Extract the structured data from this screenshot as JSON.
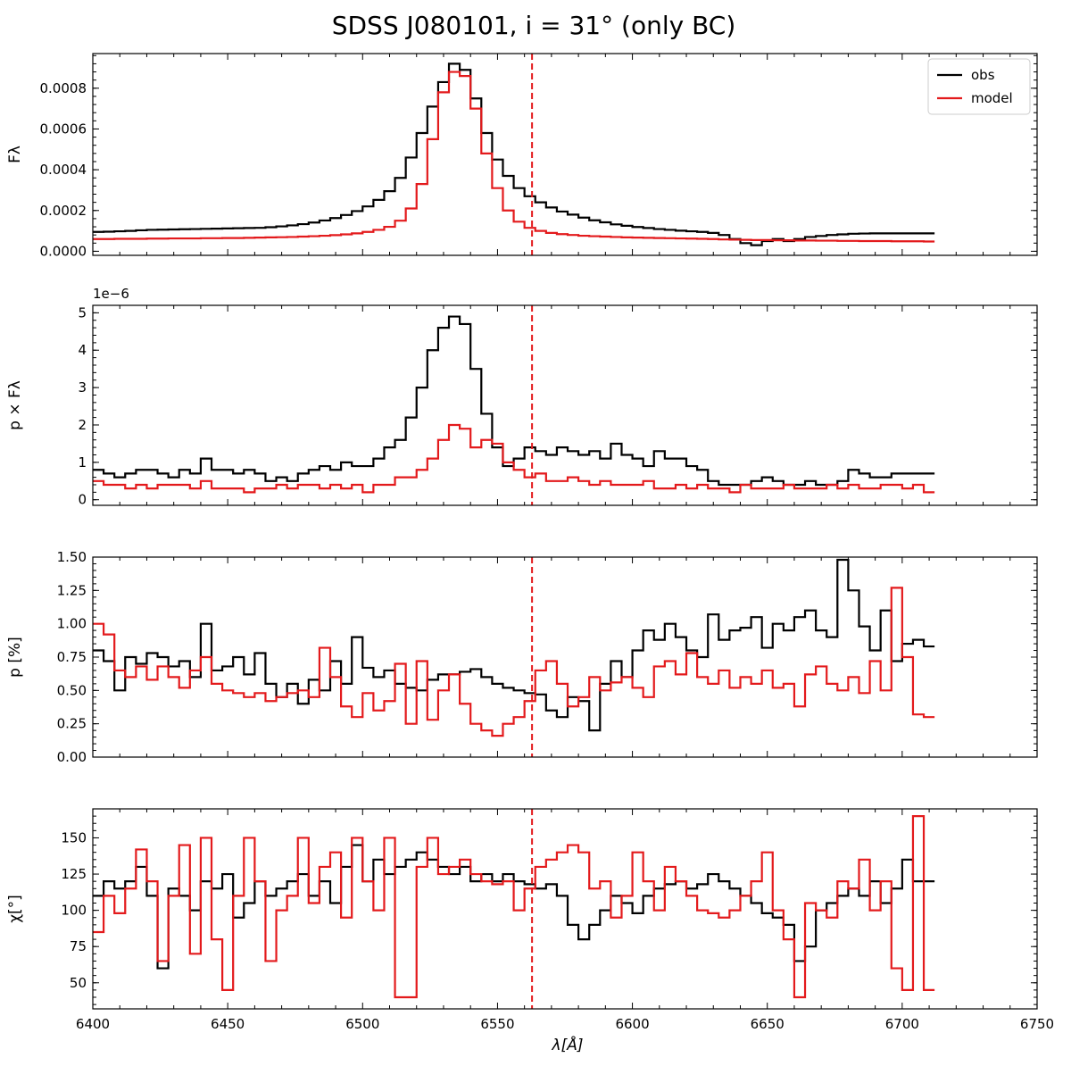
{
  "chart_data": {
    "title": "SDSS J080101, i = 31° (only BC)",
    "type": "line",
    "xlabel": "λ[Å]",
    "xlim": [
      6400,
      6750
    ],
    "xticks": [
      6400,
      6450,
      6500,
      6550,
      6600,
      6650,
      6700,
      6750
    ],
    "vline": {
      "x": 6562.8,
      "color": "#e31a1c",
      "style": "dashed"
    },
    "legend": {
      "placement": "top-right",
      "entries": [
        {
          "name": "obs",
          "color": "#000000"
        },
        {
          "name": "model",
          "color": "#e31a1c"
        }
      ]
    },
    "colors": {
      "obs": "#000000",
      "model": "#e31a1c"
    },
    "panels": [
      {
        "ylabel": "Fλ",
        "ylim": [
          -2e-05,
          0.00097
        ],
        "yticks": [
          0,
          0.0002,
          0.0004,
          0.0006,
          0.0008
        ],
        "ytick_labels": [
          "0.0000",
          "0.0002",
          "0.0004",
          "0.0006",
          "0.0008"
        ],
        "offset_text": "",
        "step": 4,
        "series": [
          {
            "name": "obs",
            "x0": 6400,
            "values": [
              9.5e-05,
              9.6e-05,
              9.8e-05,
              0.0001,
              0.000103,
              0.000105,
              0.000106,
              0.000107,
              0.000108,
              0.000109,
              0.00011,
              0.000111,
              0.000112,
              0.000113,
              0.000114,
              0.000115,
              0.000118,
              0.000122,
              0.000127,
              0.000133,
              0.000141,
              0.000151,
              0.000163,
              0.000178,
              0.000197,
              0.00022,
              0.000252,
              0.000295,
              0.00036,
              0.00046,
              0.00058,
              0.00071,
              0.00083,
              0.00092,
              0.00089,
              0.00075,
              0.00058,
              0.00045,
              0.00037,
              0.00031,
              0.00027,
              0.00024,
              0.000215,
              0.000195,
              0.00018,
              0.000165,
              0.000152,
              0.000142,
              0.000132,
              0.000125,
              0.000119,
              0.000114,
              0.000109,
              0.000105,
              0.000101,
              9.8e-05,
              9.5e-05,
              9e-05,
              8e-05,
              6e-05,
              4e-05,
              3e-05,
              5e-05,
              6e-05,
              5e-05,
              6e-05,
              7e-05,
              7.5e-05,
              8e-05,
              8.3e-05,
              8.6e-05,
              8.7e-05,
              8.8e-05,
              8.8e-05,
              8.8e-05,
              8.8e-05,
              8.8e-05,
              8.8e-05
            ]
          },
          {
            "name": "model",
            "x0": 6400,
            "values": [
              6e-05,
              6e-05,
              6.1e-05,
              6.1e-05,
              6.1e-05,
              6.2e-05,
              6.2e-05,
              6.3e-05,
              6.3e-05,
              6.3e-05,
              6.4e-05,
              6.4e-05,
              6.5e-05,
              6.5e-05,
              6.6e-05,
              6.7e-05,
              6.8e-05,
              6.9e-05,
              7e-05,
              7.2e-05,
              7.4e-05,
              7.6e-05,
              7.9e-05,
              8.3e-05,
              8.8e-05,
              9.5e-05,
              0.000105,
              0.00012,
              0.00015,
              0.00021,
              0.00033,
              0.00055,
              0.00078,
              0.00088,
              0.00086,
              0.0007,
              0.00048,
              0.00031,
              0.0002,
              0.000145,
              0.000115,
              0.0001,
              9e-05,
              8.4e-05,
              8e-05,
              7.6e-05,
              7.4e-05,
              7.2e-05,
              7e-05,
              6.8e-05,
              6.7e-05,
              6.6e-05,
              6.5e-05,
              6.4e-05,
              6.3e-05,
              6.2e-05,
              6.1e-05,
              6e-05,
              5.8e-05,
              5.7e-05,
              5.6e-05,
              5.5e-05,
              5.5e-05,
              5.4e-05,
              5.4e-05,
              5.3e-05,
              5.3e-05,
              5.2e-05,
              5.2e-05,
              5.1e-05,
              5.1e-05,
              5e-05,
              5e-05,
              5e-05,
              4.9e-05,
              4.9e-05,
              4.9e-05,
              4.8e-05
            ]
          }
        ]
      },
      {
        "ylabel": "p × Fλ",
        "ylim": [
          -1.5e-07,
          5.2e-06
        ],
        "yticks": [
          0,
          1e-06,
          2e-06,
          3e-06,
          4e-06,
          5e-06
        ],
        "ytick_labels": [
          "0",
          "1",
          "2",
          "3",
          "4",
          "5"
        ],
        "offset_text": "1e−6",
        "step": 4,
        "series": [
          {
            "name": "obs",
            "x0": 6400,
            "values": [
              8e-07,
              7e-07,
              6e-07,
              7e-07,
              8e-07,
              8e-07,
              7e-07,
              6e-07,
              8e-07,
              7e-07,
              1.1e-06,
              8e-07,
              8e-07,
              7e-07,
              8e-07,
              7e-07,
              5e-07,
              6e-07,
              5e-07,
              7e-07,
              8e-07,
              9e-07,
              8e-07,
              1e-06,
              9e-07,
              9e-07,
              1.1e-06,
              1.4e-06,
              1.6e-06,
              2.2e-06,
              3e-06,
              4e-06,
              4.6e-06,
              4.9e-06,
              4.7e-06,
              3.5e-06,
              2.3e-06,
              1.4e-06,
              9e-07,
              1.1e-06,
              1.4e-06,
              1.3e-06,
              1.2e-06,
              1.4e-06,
              1.3e-06,
              1.2e-06,
              1.3e-06,
              1.1e-06,
              1.5e-06,
              1.2e-06,
              1.1e-06,
              9e-07,
              1.3e-06,
              1.1e-06,
              1.1e-06,
              9e-07,
              8e-07,
              5e-07,
              4e-07,
              4e-07,
              4e-07,
              5e-07,
              6e-07,
              5e-07,
              4e-07,
              4e-07,
              5e-07,
              4e-07,
              4e-07,
              5e-07,
              8e-07,
              7e-07,
              6e-07,
              6e-07,
              7e-07,
              7e-07,
              7e-07,
              7e-07
            ]
          },
          {
            "name": "model",
            "x0": 6400,
            "values": [
              5e-07,
              4e-07,
              4e-07,
              3e-07,
              4e-07,
              3e-07,
              4e-07,
              4e-07,
              4e-07,
              3e-07,
              5e-07,
              3e-07,
              3e-07,
              3e-07,
              2e-07,
              3e-07,
              3e-07,
              4e-07,
              3e-07,
              4e-07,
              4e-07,
              3e-07,
              4e-07,
              3e-07,
              4e-07,
              2e-07,
              4e-07,
              4e-07,
              6e-07,
              6e-07,
              8e-07,
              1.1e-06,
              1.6e-06,
              2e-06,
              1.9e-06,
              1.4e-06,
              1.6e-06,
              1.5e-06,
              1e-06,
              8e-07,
              6e-07,
              7e-07,
              5e-07,
              5e-07,
              6e-07,
              5e-07,
              4e-07,
              5e-07,
              4e-07,
              4e-07,
              4e-07,
              5e-07,
              3e-07,
              3e-07,
              4e-07,
              3e-07,
              4e-07,
              3e-07,
              3e-07,
              2e-07,
              4e-07,
              3e-07,
              3e-07,
              3e-07,
              4e-07,
              3e-07,
              3e-07,
              3e-07,
              4e-07,
              3e-07,
              4e-07,
              3e-07,
              3e-07,
              4e-07,
              4e-07,
              3e-07,
              4e-07,
              2e-07
            ]
          }
        ]
      },
      {
        "ylabel": "p [%]",
        "ylim": [
          0,
          1.5
        ],
        "yticks": [
          0,
          0.25,
          0.5,
          0.75,
          1.0,
          1.25,
          1.5
        ],
        "ytick_labels": [
          "0.00",
          "0.25",
          "0.50",
          "0.75",
          "1.00",
          "1.25",
          "1.50"
        ],
        "offset_text": "",
        "step": 4,
        "series": [
          {
            "name": "obs",
            "x0": 6400,
            "values": [
              0.8,
              0.72,
              0.5,
              0.75,
              0.7,
              0.78,
              0.75,
              0.68,
              0.72,
              0.6,
              1.0,
              0.65,
              0.68,
              0.75,
              0.62,
              0.78,
              0.55,
              0.45,
              0.55,
              0.4,
              0.58,
              0.5,
              0.72,
              0.55,
              0.9,
              0.67,
              0.6,
              0.65,
              0.55,
              0.52,
              0.5,
              0.58,
              0.62,
              0.62,
              0.64,
              0.66,
              0.6,
              0.55,
              0.52,
              0.5,
              0.48,
              0.47,
              0.35,
              0.3,
              0.45,
              0.42,
              0.2,
              0.55,
              0.72,
              0.6,
              0.8,
              0.95,
              0.88,
              1.0,
              0.9,
              0.8,
              0.75,
              1.07,
              0.88,
              0.95,
              0.97,
              1.05,
              0.82,
              1.0,
              0.95,
              1.05,
              1.1,
              0.95,
              0.9,
              1.48,
              1.25,
              0.98,
              0.8,
              1.1,
              0.72,
              0.85,
              0.88,
              0.83
            ]
          },
          {
            "name": "model",
            "x0": 6400,
            "values": [
              1.0,
              0.92,
              0.65,
              0.6,
              0.68,
              0.58,
              0.68,
              0.6,
              0.52,
              0.65,
              0.75,
              0.55,
              0.5,
              0.48,
              0.45,
              0.48,
              0.42,
              0.45,
              0.48,
              0.5,
              0.45,
              0.82,
              0.6,
              0.38,
              0.3,
              0.48,
              0.35,
              0.42,
              0.7,
              0.25,
              0.72,
              0.28,
              0.5,
              0.62,
              0.4,
              0.25,
              0.2,
              0.16,
              0.25,
              0.3,
              0.42,
              0.65,
              0.72,
              0.55,
              0.38,
              0.45,
              0.6,
              0.5,
              0.56,
              0.6,
              0.52,
              0.45,
              0.68,
              0.72,
              0.62,
              0.78,
              0.6,
              0.55,
              0.65,
              0.52,
              0.6,
              0.55,
              0.65,
              0.52,
              0.55,
              0.38,
              0.62,
              0.68,
              0.55,
              0.5,
              0.6,
              0.48,
              0.72,
              0.5,
              1.27,
              0.75,
              0.32,
              0.3
            ]
          }
        ]
      },
      {
        "ylabel": "χ[°]",
        "ylim": [
          32,
          170
        ],
        "yticks": [
          50,
          75,
          100,
          125,
          150
        ],
        "ytick_labels": [
          "50",
          "75",
          "100",
          "125",
          "150"
        ],
        "offset_text": "",
        "step": 4,
        "series": [
          {
            "name": "obs",
            "x0": 6400,
            "values": [
              110,
              120,
              115,
              120,
              130,
              110,
              60,
              115,
              110,
              100,
              120,
              115,
              125,
              95,
              105,
              120,
              110,
              115,
              120,
              125,
              110,
              120,
              105,
              130,
              145,
              120,
              135,
              125,
              130,
              135,
              140,
              135,
              130,
              125,
              130,
              120,
              125,
              120,
              125,
              120,
              118,
              115,
              118,
              110,
              90,
              80,
              90,
              100,
              110,
              105,
              98,
              110,
              115,
              118,
              120,
              115,
              118,
              125,
              120,
              115,
              110,
              105,
              98,
              95,
              90,
              65,
              75,
              100,
              105,
              110,
              115,
              110,
              120,
              105,
              115,
              135,
              120,
              120
            ]
          },
          {
            "name": "model",
            "x0": 6400,
            "values": [
              85,
              110,
              98,
              115,
              142,
              120,
              65,
              110,
              145,
              70,
              150,
              80,
              45,
              110,
              150,
              120,
              65,
              100,
              110,
              150,
              105,
              130,
              140,
              95,
              150,
              120,
              100,
              150,
              40,
              40,
              130,
              150,
              125,
              130,
              135,
              125,
              120,
              118,
              120,
              100,
              115,
              130,
              135,
              140,
              145,
              140,
              115,
              120,
              95,
              110,
              140,
              120,
              100,
              130,
              120,
              110,
              100,
              98,
              95,
              100,
              110,
              120,
              140,
              100,
              80,
              40,
              105,
              100,
              95,
              120,
              115,
              135,
              100,
              120,
              60,
              45,
              165,
              45
            ]
          }
        ]
      }
    ]
  }
}
